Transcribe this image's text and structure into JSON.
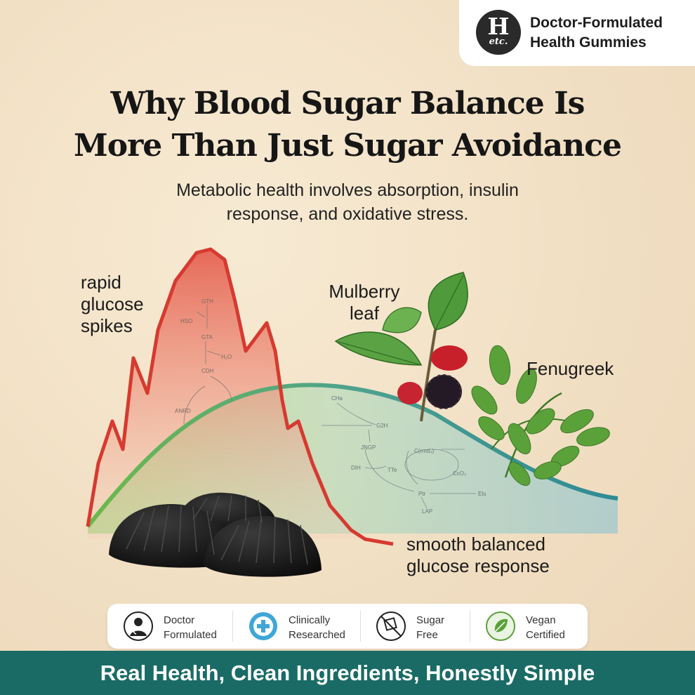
{
  "brand": {
    "logo_top": "H",
    "logo_bottom": "etc.",
    "line1": "Doctor-Formulated",
    "line2": "Health Gummies"
  },
  "title": {
    "line1": "Why Blood Sugar Balance Is",
    "line2": "More Than Just Sugar Avoidance"
  },
  "subtitle": {
    "line1": "Metabolic health involves absorption, insulin",
    "line2": "response, and oxidative stress."
  },
  "labels": {
    "spike": [
      "rapid",
      "glucose",
      "spikes"
    ],
    "mulberry": [
      "Mulberry",
      "leaf"
    ],
    "fenugreek": "Fenugreek",
    "smooth": [
      "smooth balanced",
      "glucose response"
    ]
  },
  "pathway_left": [
    "GTH",
    "HSO",
    "GTA",
    "H₂O",
    "CDH",
    "ANRD"
  ],
  "pathway_right": [
    "CHa",
    "G2H",
    "JNGP",
    "DIH",
    "TTe",
    "C(rmd₄)",
    "CcO₃",
    "Ptr",
    "Elu",
    "LAP"
  ],
  "badges": [
    {
      "line1": "Doctor",
      "line2": "Formulated",
      "icon": "doctor-icon"
    },
    {
      "line1": "Clinically",
      "line2": "Researched",
      "icon": "clinically-researched-seal-icon"
    },
    {
      "line1": "Sugar",
      "line2": "Free",
      "icon": "sugar-free-icon"
    },
    {
      "line1": "Vegan",
      "line2": "Certified",
      "icon": "vegan-leaf-icon"
    }
  ],
  "colors": {
    "spike_red": "#d63a30",
    "smooth_green": "#6cb94a",
    "smooth_teal": "#2e8a95",
    "footer_teal": "#1a6b65"
  },
  "footer": "Real Health, Clean Ingredients, Honestly Simple"
}
